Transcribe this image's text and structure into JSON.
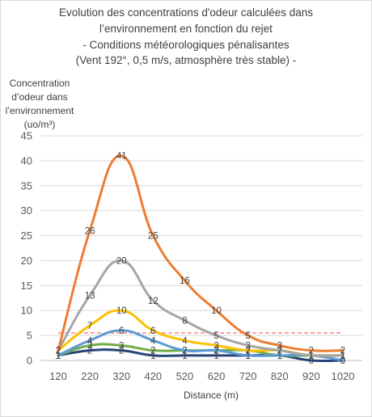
{
  "chart_data": {
    "type": "line",
    "title_lines": [
      "Evolution des concentrations d'odeur calculées dans",
      "l’environnement en fonction du rejet",
      "- Conditions météorologiques pénalisantes",
      "(Vent 192°, 0,5 m/s, atmosphère très stable) -"
    ],
    "ylabel_lines": [
      "Concentration",
      "d’odeur dans",
      "l’environnement",
      "(uo/m³)"
    ],
    "xlabel": "Distance (m)",
    "x": [
      120,
      220,
      320,
      420,
      520,
      620,
      720,
      820,
      920,
      1020
    ],
    "y_ticks": [
      0,
      5,
      10,
      15,
      20,
      25,
      30,
      35,
      40,
      45
    ],
    "ylim": [
      0,
      45
    ],
    "grid": true,
    "legend": "none",
    "threshold": {
      "value": 5.5,
      "color": "#ff6b6b",
      "style": "dashed"
    },
    "series": [
      {
        "color": "#ed7d31",
        "values": [
          2,
          26,
          41,
          25,
          16,
          10,
          5,
          3,
          2,
          2
        ]
      },
      {
        "color": "#a5a5a5",
        "values": [
          2,
          13,
          20,
          12,
          8,
          5,
          3,
          2,
          1,
          1
        ]
      },
      {
        "color": "#ffc000",
        "values": [
          2,
          7,
          10,
          6,
          4,
          3,
          2,
          2,
          1,
          1
        ]
      },
      {
        "color": "#5b9bd5",
        "values": [
          1,
          4,
          6,
          4,
          2,
          2,
          1,
          1,
          1,
          0
        ]
      },
      {
        "color": "#70ad47",
        "values": [
          1,
          3,
          3,
          2,
          2,
          2,
          2,
          1,
          1,
          1
        ]
      },
      {
        "color": "#264478",
        "values": [
          1,
          2,
          2,
          1,
          1,
          1,
          1,
          1,
          0,
          0
        ]
      }
    ]
  }
}
